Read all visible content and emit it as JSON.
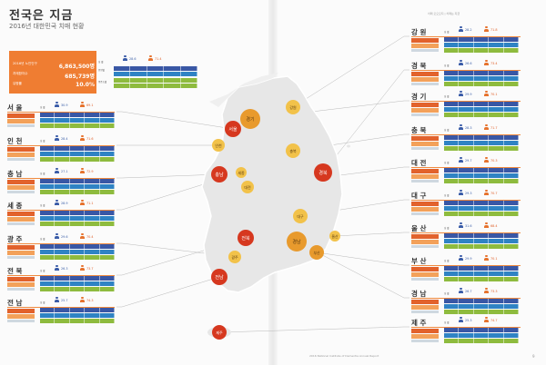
{
  "header": {
    "title": "전국은 지금",
    "subtitle": "2016년 대한민국 치매 현황",
    "top_right": "치매 오오오지 | 치매는 지금",
    "footer": "2016 National Institute of Dementia Annual Report",
    "page": "9"
  },
  "national": {
    "name": "전 국",
    "male_value": "28.6",
    "female_value": "71.4",
    "rows": [
      {
        "label": "2016년 노인인구",
        "value": "6,863,500명"
      },
      {
        "label": "치매환자수",
        "value": "685,739명"
      },
      {
        "label": "유병률",
        "value": "10.0%"
      }
    ]
  },
  "legend": {
    "gender_label": "성 별",
    "age_label": "연령별",
    "severity_label": "중증도별"
  },
  "chart_data": {
    "type": "table",
    "title": "2016년 대한민국 치매 현황",
    "regions": [
      {
        "name": "서 울",
        "male": 30.9,
        "female": 69.1
      },
      {
        "name": "인 천",
        "male": 28.4,
        "female": 71.6
      },
      {
        "name": "충 남",
        "male": 27.1,
        "female": 72.9
      },
      {
        "name": "세 종",
        "male": 28.9,
        "female": 71.1
      },
      {
        "name": "광 주",
        "male": 29.6,
        "female": 70.4
      },
      {
        "name": "전 북",
        "male": 26.3,
        "female": 73.7
      },
      {
        "name": "전 남",
        "male": 25.7,
        "female": 74.3
      },
      {
        "name": "강 원",
        "male": 28.2,
        "female": 71.8
      },
      {
        "name": "경 북",
        "male": 26.6,
        "female": 73.4
      },
      {
        "name": "경 기",
        "male": 29.9,
        "female": 70.1
      },
      {
        "name": "충 북",
        "male": 28.3,
        "female": 71.7
      },
      {
        "name": "대 전",
        "male": 29.7,
        "female": 70.3
      },
      {
        "name": "대 구",
        "male": 29.3,
        "female": 70.7
      },
      {
        "name": "울 산",
        "male": 31.6,
        "female": 68.4
      },
      {
        "name": "부 산",
        "male": 29.9,
        "female": 70.1
      },
      {
        "name": "경 남",
        "male": 26.7,
        "female": 73.3
      },
      {
        "name": "제 주",
        "male": 25.3,
        "female": 74.7
      }
    ]
  },
  "map_labels": [
    {
      "name": "서울",
      "level": "high"
    },
    {
      "name": "인천",
      "level": "low"
    },
    {
      "name": "경기",
      "level": "mid"
    },
    {
      "name": "강원",
      "level": "low"
    },
    {
      "name": "충북",
      "level": "low"
    },
    {
      "name": "충남",
      "level": "high"
    },
    {
      "name": "세종",
      "level": "low"
    },
    {
      "name": "대전",
      "level": "low"
    },
    {
      "name": "경북",
      "level": "high"
    },
    {
      "name": "대구",
      "level": "low"
    },
    {
      "name": "전북",
      "level": "high"
    },
    {
      "name": "광주",
      "level": "low"
    },
    {
      "name": "전남",
      "level": "high"
    },
    {
      "name": "경남",
      "level": "mid"
    },
    {
      "name": "부산",
      "level": "mid"
    },
    {
      "name": "울산",
      "level": "low"
    },
    {
      "name": "제주",
      "level": "high"
    }
  ],
  "colors": {
    "high": "#d6381f",
    "mid": "#e89a2d",
    "low": "#f2c24a",
    "accent": "#ef7d32",
    "male": "#3a5ca8",
    "female": "#e6722d"
  }
}
